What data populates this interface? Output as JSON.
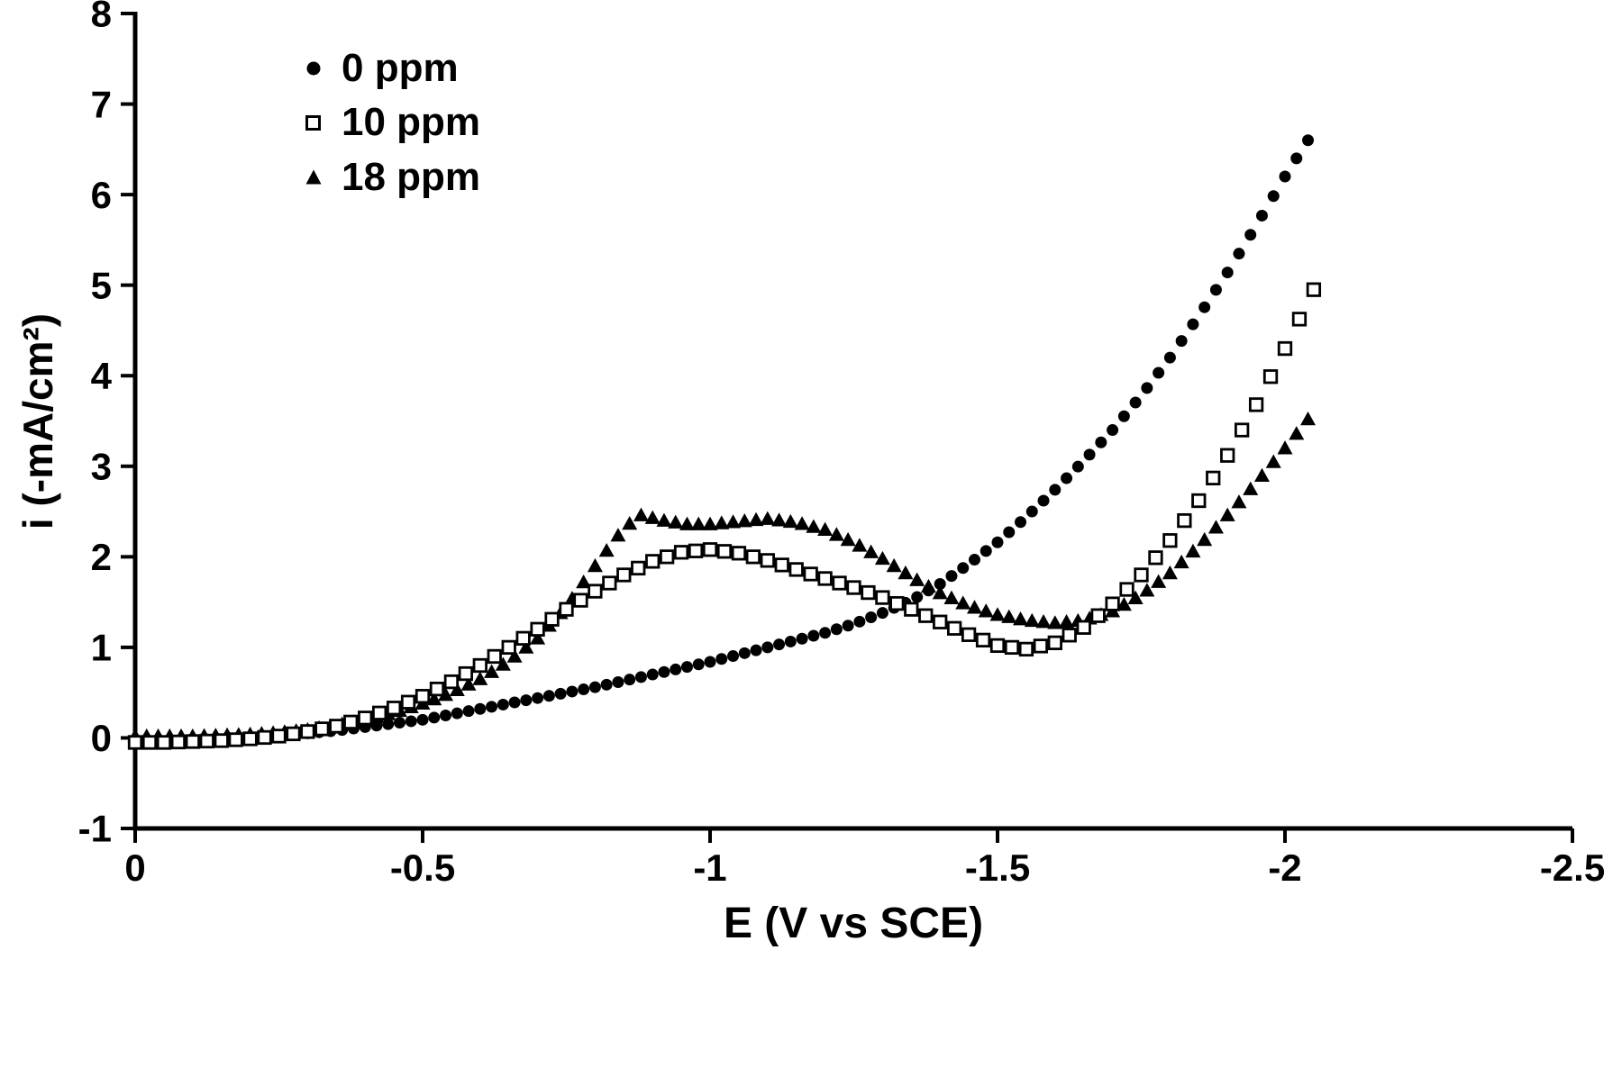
{
  "figure": {
    "background": "#ffffff",
    "ink": "#000000"
  },
  "chart_data": {
    "type": "scatter",
    "title": "",
    "xlabel": "E (V vs SCE)",
    "ylabel": "i (-mA/cm²)",
    "x_axis": {
      "min": 0,
      "max": -2.5,
      "reversed": true,
      "ticks": [
        0,
        -0.5,
        -1,
        -1.5,
        -2,
        -2.5
      ],
      "tick_labels": [
        "0",
        "-0.5",
        "-1",
        "-1.5",
        "-2",
        "-2.5"
      ]
    },
    "y_axis": {
      "min": -1,
      "max": 8,
      "ticks": [
        -1,
        0,
        1,
        2,
        3,
        4,
        5,
        6,
        7,
        8
      ],
      "tick_labels": [
        "-1",
        "0",
        "1",
        "2",
        "3",
        "4",
        "5",
        "6",
        "7",
        "8"
      ]
    },
    "legend": {
      "position": "top-left-inside"
    },
    "series": [
      {
        "id": "0ppm",
        "name": "0 ppm",
        "marker": "filled-circle",
        "z": 1,
        "marker_step_V": 0.02,
        "points": [
          [
            0,
            -0.02
          ],
          [
            -0.05,
            -0.02
          ],
          [
            -0.1,
            -0.02
          ],
          [
            -0.15,
            -0.01
          ],
          [
            -0.2,
            0
          ],
          [
            -0.25,
            0.02
          ],
          [
            -0.3,
            0.05
          ],
          [
            -0.35,
            0.08
          ],
          [
            -0.4,
            0.12
          ],
          [
            -0.45,
            0.16
          ],
          [
            -0.5,
            0.2
          ],
          [
            -0.55,
            0.26
          ],
          [
            -0.6,
            0.32
          ],
          [
            -0.65,
            0.38
          ],
          [
            -0.7,
            0.44
          ],
          [
            -0.75,
            0.5
          ],
          [
            -0.8,
            0.56
          ],
          [
            -0.85,
            0.63
          ],
          [
            -0.9,
            0.7
          ],
          [
            -0.95,
            0.77
          ],
          [
            -1,
            0.84
          ],
          [
            -1.05,
            0.92
          ],
          [
            -1.1,
            1
          ],
          [
            -1.15,
            1.08
          ],
          [
            -1.2,
            1.16
          ],
          [
            -1.25,
            1.26
          ],
          [
            -1.3,
            1.38
          ],
          [
            -1.35,
            1.52
          ],
          [
            -1.4,
            1.7
          ],
          [
            -1.45,
            1.92
          ],
          [
            -1.5,
            2.16
          ],
          [
            -1.55,
            2.44
          ],
          [
            -1.6,
            2.74
          ],
          [
            -1.65,
            3.06
          ],
          [
            -1.7,
            3.4
          ],
          [
            -1.75,
            3.78
          ],
          [
            -1.8,
            4.2
          ],
          [
            -1.85,
            4.66
          ],
          [
            -1.9,
            5.14
          ],
          [
            -1.95,
            5.66
          ],
          [
            -2,
            6.2
          ],
          [
            -2.05,
            6.7
          ]
        ]
      },
      {
        "id": "10ppm",
        "name": "10 ppm",
        "marker": "open-square",
        "z": 3,
        "marker_step_V": 0.025,
        "points": [
          [
            0,
            -0.05
          ],
          [
            -0.05,
            -0.05
          ],
          [
            -0.1,
            -0.04
          ],
          [
            -0.15,
            -0.03
          ],
          [
            -0.2,
            -0.01
          ],
          [
            -0.25,
            0.02
          ],
          [
            -0.3,
            0.07
          ],
          [
            -0.35,
            0.13
          ],
          [
            -0.4,
            0.22
          ],
          [
            -0.45,
            0.33
          ],
          [
            -0.5,
            0.46
          ],
          [
            -0.55,
            0.62
          ],
          [
            -0.6,
            0.8
          ],
          [
            -0.65,
            1
          ],
          [
            -0.7,
            1.2
          ],
          [
            -0.75,
            1.42
          ],
          [
            -0.8,
            1.62
          ],
          [
            -0.85,
            1.8
          ],
          [
            -0.9,
            1.95
          ],
          [
            -0.95,
            2.05
          ],
          [
            -1,
            2.08
          ],
          [
            -1.05,
            2.04
          ],
          [
            -1.1,
            1.96
          ],
          [
            -1.15,
            1.86
          ],
          [
            -1.2,
            1.76
          ],
          [
            -1.25,
            1.66
          ],
          [
            -1.3,
            1.55
          ],
          [
            -1.35,
            1.42
          ],
          [
            -1.4,
            1.28
          ],
          [
            -1.45,
            1.14
          ],
          [
            -1.5,
            1.02
          ],
          [
            -1.55,
            0.98
          ],
          [
            -1.6,
            1.05
          ],
          [
            -1.65,
            1.22
          ],
          [
            -1.7,
            1.48
          ],
          [
            -1.75,
            1.8
          ],
          [
            -1.8,
            2.18
          ],
          [
            -1.85,
            2.62
          ],
          [
            -1.9,
            3.12
          ],
          [
            -1.95,
            3.68
          ],
          [
            -2,
            4.3
          ],
          [
            -2.05,
            4.95
          ]
        ]
      },
      {
        "id": "18ppm",
        "name": "18 ppm",
        "marker": "filled-triangle",
        "z": 2,
        "marker_step_V": 0.02,
        "points": [
          [
            0,
            0.02
          ],
          [
            -0.1,
            0.02
          ],
          [
            -0.2,
            0.04
          ],
          [
            -0.25,
            0.06
          ],
          [
            -0.3,
            0.09
          ],
          [
            -0.35,
            0.14
          ],
          [
            -0.4,
            0.2
          ],
          [
            -0.45,
            0.28
          ],
          [
            -0.5,
            0.38
          ],
          [
            -0.55,
            0.5
          ],
          [
            -0.6,
            0.65
          ],
          [
            -0.65,
            0.85
          ],
          [
            -0.7,
            1.1
          ],
          [
            -0.75,
            1.45
          ],
          [
            -0.8,
            1.9
          ],
          [
            -0.85,
            2.32
          ],
          [
            -0.88,
            2.46
          ],
          [
            -0.92,
            2.4
          ],
          [
            -0.96,
            2.36
          ],
          [
            -1,
            2.36
          ],
          [
            -1.05,
            2.39
          ],
          [
            -1.1,
            2.42
          ],
          [
            -1.15,
            2.38
          ],
          [
            -1.2,
            2.3
          ],
          [
            -1.25,
            2.16
          ],
          [
            -1.3,
            1.98
          ],
          [
            -1.35,
            1.78
          ],
          [
            -1.4,
            1.6
          ],
          [
            -1.45,
            1.46
          ],
          [
            -1.5,
            1.36
          ],
          [
            -1.55,
            1.3
          ],
          [
            -1.6,
            1.27
          ],
          [
            -1.65,
            1.3
          ],
          [
            -1.7,
            1.4
          ],
          [
            -1.75,
            1.58
          ],
          [
            -1.8,
            1.82
          ],
          [
            -1.85,
            2.12
          ],
          [
            -1.9,
            2.46
          ],
          [
            -1.95,
            2.82
          ],
          [
            -2,
            3.2
          ],
          [
            -2.05,
            3.6
          ]
        ]
      }
    ]
  }
}
